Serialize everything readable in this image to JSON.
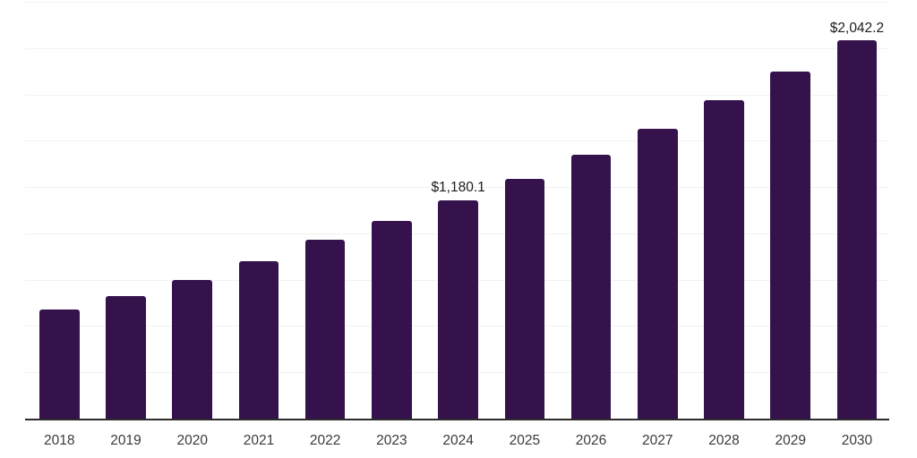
{
  "chart_data": {
    "type": "bar",
    "title": "",
    "xlabel": "",
    "ylabel": "",
    "categories": [
      "2018",
      "2019",
      "2020",
      "2021",
      "2022",
      "2023",
      "2024",
      "2025",
      "2026",
      "2027",
      "2028",
      "2029",
      "2030"
    ],
    "values": [
      588,
      660,
      748,
      848,
      964,
      1066,
      1180.1,
      1296,
      1425,
      1565,
      1717,
      1873,
      2042.2
    ],
    "data_labels": [
      {
        "category": "2024",
        "index": 6,
        "text": "$1,180.1"
      },
      {
        "category": "2030",
        "index": 12,
        "text": "$2,042.2"
      }
    ],
    "ylim": [
      0,
      2250
    ],
    "gridline_interval": 250,
    "grid": "horizontal",
    "y_tick_labels_shown": false,
    "legend": "none",
    "colors": {
      "bar": "#35124B",
      "background": "#FFFFFF",
      "gridline": "#F2F2F2",
      "axis_line": "#2B2B2B",
      "tick_label": "#3A3A3A",
      "data_label": "#1C1C1C"
    }
  }
}
